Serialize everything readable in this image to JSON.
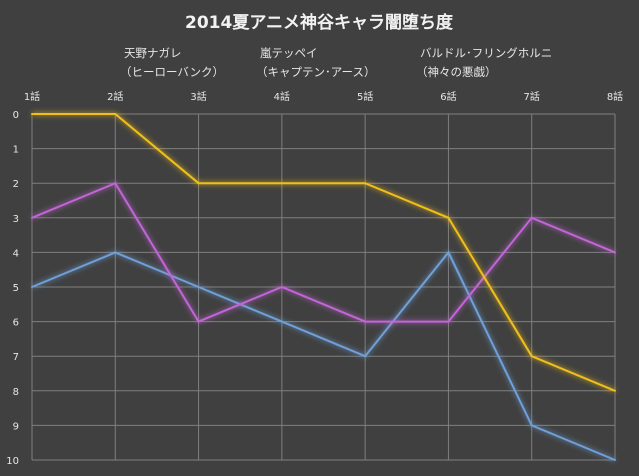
{
  "chart_data": {
    "type": "line",
    "title": "2014夏アニメ神谷キャラ闇堕ち度",
    "categories": [
      "1話",
      "2話",
      "3話",
      "4話",
      "5話",
      "6話",
      "7話",
      "8話"
    ],
    "ylim": [
      0,
      10
    ],
    "y_inverted": true,
    "y_ticks": [
      0,
      1,
      2,
      3,
      4,
      5,
      6,
      7,
      8,
      9,
      10
    ],
    "grid": true,
    "legend_position": "top",
    "series": [
      {
        "name_line1": "天野ナガレ",
        "name_line2": "（ヒーローバンク）",
        "color": "#6fa0d8",
        "values": [
          5,
          4,
          5,
          6,
          7,
          4,
          9,
          10
        ]
      },
      {
        "name_line1": "嵐テッペイ",
        "name_line2": "（キャプテン･アース）",
        "color": "#c265d6",
        "values": [
          3,
          2,
          6,
          5,
          6,
          6,
          3,
          4
        ]
      },
      {
        "name_line1": "バルドル･フリングホルニ",
        "name_line2": "（神々の悪戯）",
        "color": "#f0bf1a",
        "values": [
          0,
          0,
          2,
          2,
          2,
          3,
          7,
          8
        ]
      }
    ]
  }
}
